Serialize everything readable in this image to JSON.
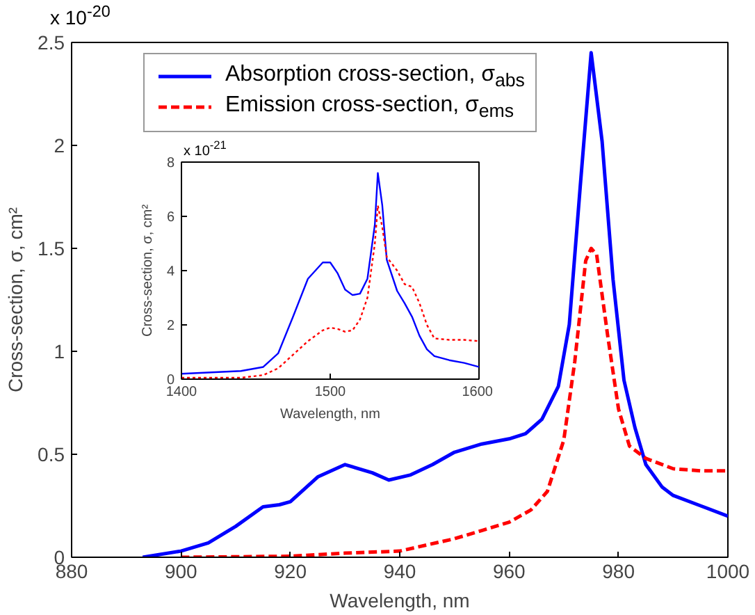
{
  "chart_data": [
    {
      "type": "line",
      "xlabel": "Wavelength, nm",
      "ylabel": "Cross-section, σ, cm²",
      "annotations": [
        "x 10$^{-20}$"
      ],
      "xlim": [
        880,
        1000
      ],
      "ylim": [
        0,
        2.5
      ],
      "xticks": [
        880,
        900,
        920,
        940,
        960,
        980,
        1000
      ],
      "yticks": [
        0,
        0.5,
        1,
        1.5,
        2,
        2.5
      ],
      "grid": false,
      "legend": "top left",
      "series": [
        {
          "name": "Absorption cross-section, σ$_{abs}$",
          "color": "#0000ff",
          "line_style": "solid",
          "x": [
            893,
            900,
            905,
            910,
            915,
            918,
            920,
            925,
            930,
            935,
            938,
            942,
            946,
            950,
            955,
            960,
            963,
            966,
            969,
            971,
            973,
            975,
            977,
            979,
            981,
            983,
            985,
            988,
            990,
            995,
            1000
          ],
          "values": [
            0,
            0.03,
            0.07,
            0.15,
            0.245,
            0.255,
            0.27,
            0.39,
            0.45,
            0.41,
            0.375,
            0.4,
            0.45,
            0.51,
            0.55,
            0.575,
            0.6,
            0.67,
            0.83,
            1.13,
            1.8,
            2.45,
            2.02,
            1.35,
            0.86,
            0.63,
            0.45,
            0.34,
            0.3,
            0.25,
            0.2
          ]
        },
        {
          "name": "Emission cross-section, σ$_{ems}$",
          "color": "#ff0000",
          "line_style": "dashed",
          "x": [
            900,
            920,
            930,
            940,
            945,
            950,
            955,
            960,
            964,
            967,
            970,
            972,
            974,
            975,
            976,
            978,
            980,
            982,
            985,
            990,
            995,
            1000
          ],
          "values": [
            0,
            0.005,
            0.02,
            0.03,
            0.06,
            0.09,
            0.13,
            0.17,
            0.23,
            0.32,
            0.57,
            0.95,
            1.44,
            1.5,
            1.47,
            1.08,
            0.72,
            0.54,
            0.48,
            0.43,
            0.42,
            0.42
          ]
        }
      ]
    },
    {
      "type": "line",
      "xlabel": "Wavelength, nm",
      "ylabel": "Cross-section, σ, cm²",
      "annotations": [
        "x 10$^{-21}$"
      ],
      "xlim": [
        1400,
        1600
      ],
      "ylim": [
        0,
        8
      ],
      "xticks": [
        1400,
        1500,
        1600
      ],
      "yticks": [
        0,
        2,
        4,
        6,
        8
      ],
      "grid": false,
      "series": [
        {
          "color": "#0000ff",
          "line_style": "solid",
          "x": [
            1400,
            1420,
            1440,
            1455,
            1465,
            1475,
            1485,
            1495,
            1500,
            1505,
            1510,
            1515,
            1520,
            1525,
            1530,
            1532,
            1535,
            1538,
            1545,
            1550,
            1555,
            1560,
            1565,
            1570,
            1580,
            1590,
            1600
          ],
          "values": [
            0.2,
            0.25,
            0.3,
            0.45,
            0.95,
            2.3,
            3.7,
            4.3,
            4.3,
            3.9,
            3.3,
            3.1,
            3.15,
            3.7,
            5.7,
            7.6,
            6.4,
            4.4,
            3.25,
            2.8,
            2.3,
            1.6,
            1.1,
            0.85,
            0.7,
            0.6,
            0.45
          ]
        },
        {
          "color": "#ff0000",
          "line_style": "dotted",
          "x": [
            1400,
            1440,
            1455,
            1465,
            1475,
            1485,
            1495,
            1500,
            1505,
            1510,
            1515,
            1520,
            1525,
            1530,
            1532,
            1535,
            1538,
            1545,
            1550,
            1555,
            1560,
            1565,
            1570,
            1580,
            1590,
            1600
          ],
          "values": [
            0.05,
            0.05,
            0.15,
            0.4,
            0.9,
            1.4,
            1.8,
            1.9,
            1.85,
            1.75,
            1.8,
            2.2,
            3.0,
            5.0,
            6.4,
            5.6,
            4.5,
            4.0,
            3.5,
            3.4,
            2.8,
            2.0,
            1.5,
            1.45,
            1.45,
            1.4
          ]
        }
      ]
    }
  ]
}
